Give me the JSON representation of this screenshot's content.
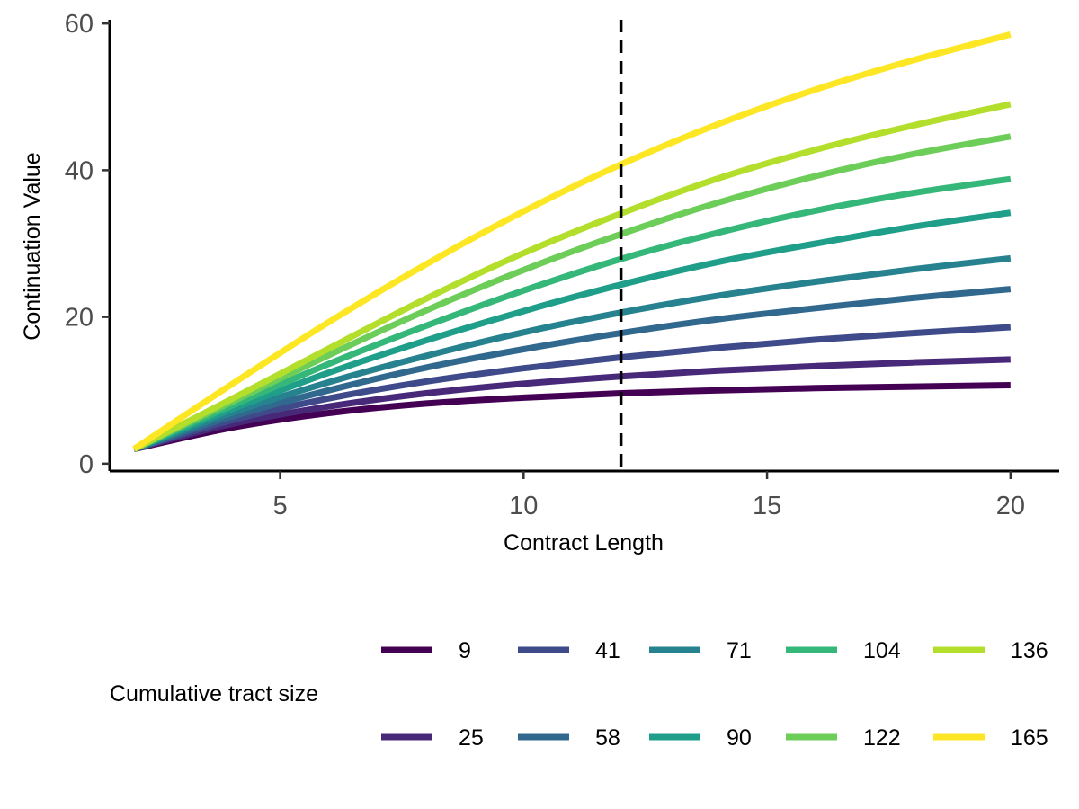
{
  "chart_data": {
    "type": "line",
    "xlabel": "Contract Length",
    "ylabel": "Continuation Value",
    "xlim": [
      1.5,
      21
    ],
    "ylim": [
      -1,
      61
    ],
    "xticks": [
      5,
      10,
      15,
      20
    ],
    "yticks": [
      0,
      20,
      40,
      60
    ],
    "grid": false,
    "vline": {
      "x": 12,
      "style": "dashed",
      "color": "#000000"
    },
    "x": [
      2,
      4,
      6,
      8,
      10,
      12,
      14,
      16,
      18,
      20
    ],
    "legend": {
      "title": "Cumulative tract size",
      "position": "bottom"
    },
    "series": [
      {
        "name": "9",
        "color": "#440154",
        "values": [
          2.0,
          4.9,
          6.9,
          8.2,
          9.0,
          9.6,
          10.0,
          10.3,
          10.5,
          10.7
        ]
      },
      {
        "name": "25",
        "color": "#482878",
        "values": [
          2.0,
          5.4,
          7.8,
          9.6,
          10.9,
          11.9,
          12.7,
          13.3,
          13.8,
          14.2
        ]
      },
      {
        "name": "41",
        "color": "#3E4A89",
        "values": [
          2.0,
          5.9,
          8.9,
          11.2,
          13.0,
          14.5,
          15.8,
          16.9,
          17.8,
          18.6
        ]
      },
      {
        "name": "58",
        "color": "#31688E",
        "values": [
          2.0,
          6.4,
          10.0,
          13.1,
          15.6,
          17.8,
          19.7,
          21.2,
          22.6,
          23.8
        ]
      },
      {
        "name": "71",
        "color": "#26828E",
        "values": [
          2.0,
          6.9,
          11.1,
          14.7,
          17.9,
          20.6,
          22.9,
          24.8,
          26.5,
          28.0
        ]
      },
      {
        "name": "90",
        "color": "#1F9E89",
        "values": [
          2.0,
          7.4,
          12.4,
          16.8,
          20.8,
          24.4,
          27.5,
          30.0,
          32.3,
          34.2
        ]
      },
      {
        "name": "104",
        "color": "#35B779",
        "values": [
          2.0,
          7.9,
          13.6,
          18.8,
          23.6,
          27.9,
          31.5,
          34.5,
          36.9,
          38.8
        ]
      },
      {
        "name": "122",
        "color": "#6DCD59",
        "values": [
          2.0,
          8.4,
          14.8,
          20.9,
          26.4,
          31.3,
          35.6,
          39.2,
          42.2,
          44.6
        ]
      },
      {
        "name": "136",
        "color": "#B4DE2C",
        "values": [
          2.0,
          8.8,
          15.7,
          22.5,
          28.7,
          34.1,
          38.9,
          42.8,
          46.1,
          49.0
        ]
      },
      {
        "name": "165",
        "color": "#FDE725",
        "values": [
          2.0,
          10.8,
          19.3,
          27.2,
          34.4,
          40.8,
          46.3,
          51.0,
          55.0,
          58.5
        ]
      }
    ]
  }
}
